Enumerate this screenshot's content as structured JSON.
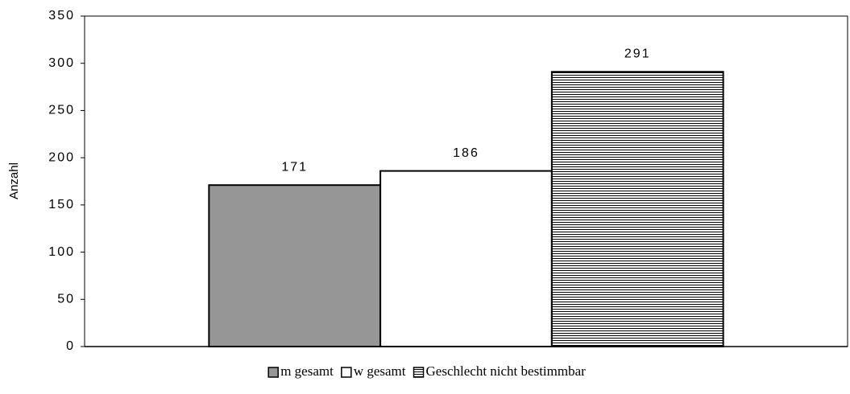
{
  "chart_data": {
    "type": "bar",
    "y_label": "Anzahl",
    "categories": [
      null
    ],
    "series": [
      {
        "name": "m gesamt",
        "color": "#969696",
        "values": [
          171
        ]
      },
      {
        "name": "w gesamt",
        "color": "#ffffff",
        "values": [
          186
        ]
      },
      {
        "name": "Geschlecht nicht bestimmbar",
        "color": "#000000",
        "pattern": "horizontal-lines",
        "values": [
          291
        ]
      }
    ],
    "ylim": [
      0,
      350
    ],
    "yticks": [
      0,
      50,
      100,
      150,
      200,
      250,
      300,
      350
    ],
    "value_labels_shown": true,
    "legend": "bottom"
  }
}
